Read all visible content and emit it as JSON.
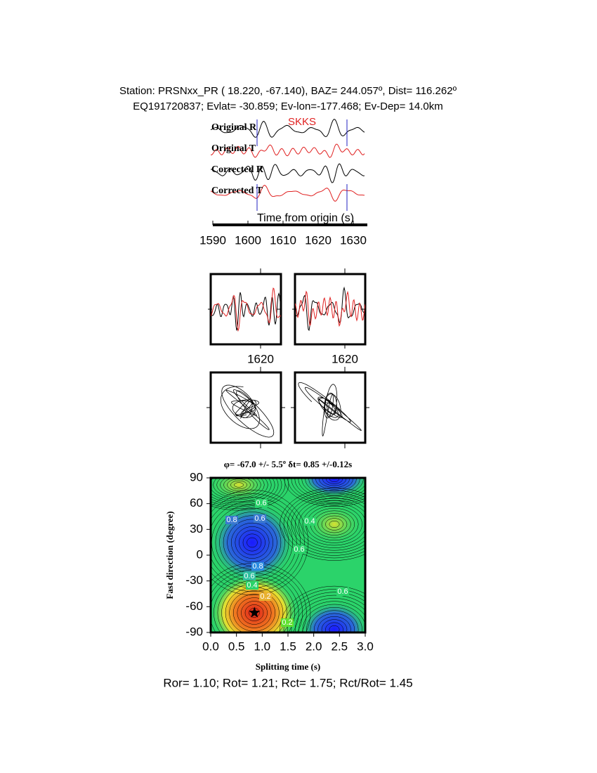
{
  "header": {
    "line1": "Station: PRSNxx_PR (  18.220,  -67.140), BAZ=  244.057º, Dist=  116.262º",
    "line2": "EQ191720837; Evlat= -30.859; Ev-lon=-177.468; Ev-Dep= 14.0km"
  },
  "traces": {
    "labels": [
      "Original R",
      "Original T",
      "Corrected R",
      "Corrected T"
    ],
    "phase": "SKKS",
    "xlabel": "Time from origin (s)",
    "xlim": [
      1590,
      1634
    ],
    "xticks": [
      1590,
      1600,
      1610,
      1620,
      1630
    ]
  },
  "particle_motion": {
    "xticks": [
      1620,
      1620
    ]
  },
  "grid_search": {
    "title": "φ= -67.0 +/- 5.5º δt= 0.85 +/-0.12s",
    "xlabel": "Splitting time (s)",
    "ylabel": "Fast direction (degree)",
    "xlim": [
      0,
      3
    ],
    "ylim": [
      -90,
      90
    ],
    "xticks": [
      {
        "value": 0,
        "label": "0.0"
      },
      {
        "value": 0.5,
        "label": "0.5"
      },
      {
        "value": 1,
        "label": "1.0"
      },
      {
        "value": 1.5,
        "label": "1.5"
      },
      {
        "value": 2,
        "label": "2.0"
      },
      {
        "value": 2.5,
        "label": "2.5"
      },
      {
        "value": 3,
        "label": "3.0"
      }
    ],
    "yticks": [
      -90,
      -60,
      -30,
      0,
      30,
      60,
      90
    ],
    "best": {
      "x": 0.85,
      "y": -67
    },
    "contour_labels": [
      0.6,
      0.8,
      0.6,
      0.4,
      0.6,
      0.8,
      0.6,
      0.4,
      0.2,
      0.6,
      0.2
    ]
  },
  "footer": "Ror= 1.10; Rot= 1.21; Rct= 1.75; Rct/Rot= 1.45"
}
